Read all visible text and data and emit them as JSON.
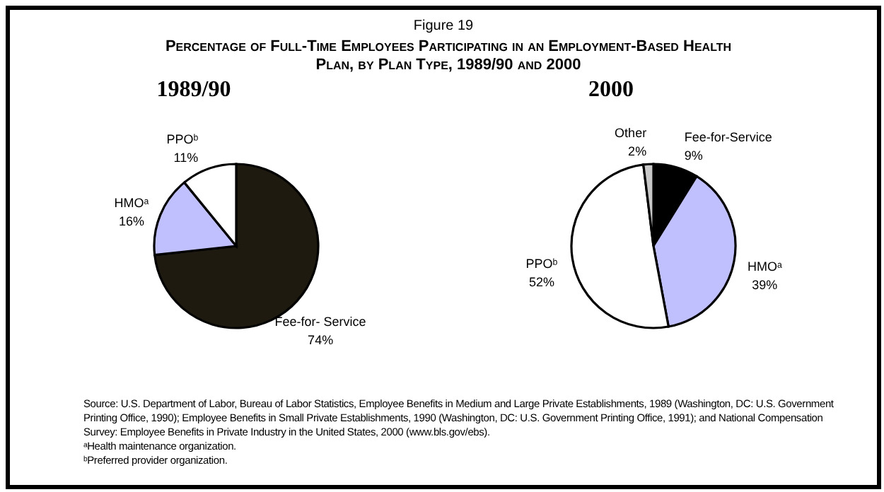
{
  "chart_data": [
    {
      "type": "pie",
      "title": "1989/90",
      "categories": [
        "Fee-for- Service",
        "HMOᵃ",
        "PPOᵇ"
      ],
      "values": [
        74,
        16,
        11
      ],
      "colors": [
        "#1f1a0f",
        "#c0c0ff",
        "#ffffff"
      ],
      "value_labels": [
        "74%",
        "16%",
        "11%"
      ],
      "annotations": [
        "Figure 19",
        "Percentage of Full-Time Employees Participating in an Employment-Based Health Plan, by Plan Type, 1989/90 and 2000",
        "Source: U.S. Department of Labor, Bureau of Labor Statistics, Employee Benefits in Medium and Large Private Establishments, 1989 (Washington, DC: U.S. Government Printing Office, 1990); Employee Benefits in Small Private Establishments, 1990 (Washington, DC: U.S. Government Printing Office, 1991); and National Compensation Survey: Employee Benefits in Private Industry in the United States, 2000 (www.bls.gov/ebs).",
        "ᵃHealth maintenance organization.",
        "ᵇPreferred provider organization."
      ]
    },
    {
      "type": "pie",
      "title": "2000",
      "categories": [
        "Fee-for-Service",
        "HMOᵃ",
        "PPOᵇ",
        "Other"
      ],
      "values": [
        9,
        39,
        52,
        2
      ],
      "colors": [
        "#000000",
        "#c0c0ff",
        "#ffffff",
        "#c8c8c8"
      ],
      "value_labels": [
        "9%",
        "39%",
        "52%",
        "2%"
      ]
    }
  ]
}
